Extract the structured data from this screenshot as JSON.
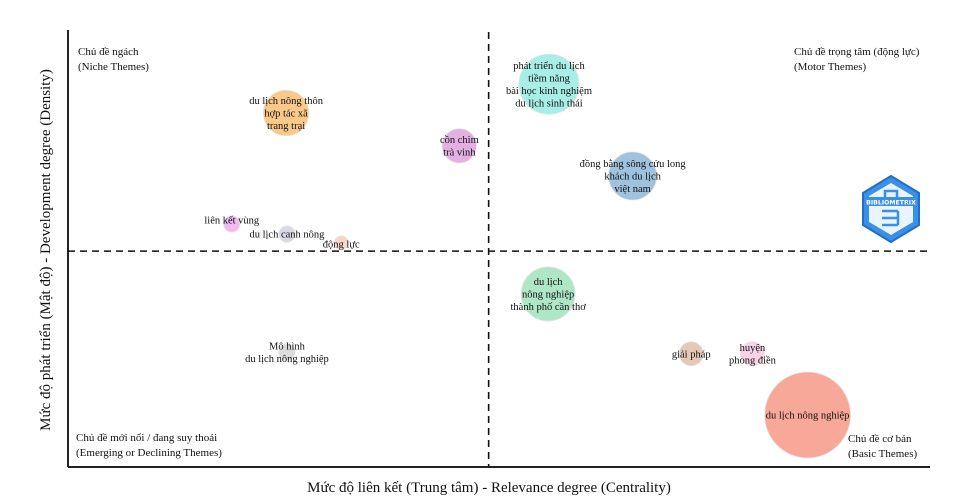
{
  "chart_data": {
    "type": "scatter",
    "subtype": "bubble-thematic-map",
    "xlabel": "Mức độ liên kết (Trung tâm) - Relevance degree (Centrality)",
    "ylabel": "Mức độ phát triển (Mật độ) - Development degree (Density)",
    "xlim": [
      0,
      100
    ],
    "ylim": [
      0,
      100
    ],
    "x_divider": 48.8,
    "y_divider": 49.4,
    "grid": false,
    "quadrants": {
      "top_left": [
        "Chủ đề ngách",
        "(Niche Themes)"
      ],
      "top_right": [
        "Chủ đề trọng tâm (động lực)",
        "(Motor Themes)"
      ],
      "bottom_left": [
        "Chủ đề mới nổi / đang suy thoái",
        "(Emerging or Declining Themes)"
      ],
      "bottom_right": [
        "Chủ đề cơ bản",
        "(Basic Themes)"
      ]
    },
    "points": [
      {
        "label": [
          "du lịch nông thôn",
          "hợp tác xã",
          "trang trại"
        ],
        "x": 25.3,
        "y": 81.0,
        "size": 53,
        "color": "#f9c98a"
      },
      {
        "label": [
          "cồn chim",
          "trà vinh"
        ],
        "x": 45.4,
        "y": 73.5,
        "size": 40,
        "color": "#e4b0e4"
      },
      {
        "label": [
          "liên kết vùng"
        ],
        "x": 19.0,
        "y": 55.6,
        "size": 19,
        "color": "#f3b8f0"
      },
      {
        "label": [
          "du lịch canh nông"
        ],
        "x": 25.4,
        "y": 53.3,
        "size": 19,
        "color": "#d8d8e6"
      },
      {
        "label": [
          "động lực"
        ],
        "x": 31.7,
        "y": 51.3,
        "size": 16,
        "color": "#f8d6c8"
      },
      {
        "label": [
          "phát triển du lịch",
          "tiềm năng",
          "bài học kinh nghiệm",
          "du lịch sinh thái"
        ],
        "x": 55.8,
        "y": 87.6,
        "size": 70,
        "color": "#a8eee6"
      },
      {
        "label": [
          "đồng bằng sông cửu long",
          "khách du lịch",
          "việt nam"
        ],
        "x": 65.5,
        "y": 66.6,
        "size": 56,
        "color": "#9fc2de"
      },
      {
        "label": [
          "du lịch",
          "nông nghiệp",
          "thành phố cần thơ"
        ],
        "x": 55.7,
        "y": 39.6,
        "size": 63,
        "color": "#afe7c6"
      },
      {
        "label": [
          "Mô hình",
          "du lịch nông nghiệp"
        ],
        "x": 25.4,
        "y": 26.3,
        "size": 19,
        "color": "#dcdcdc"
      },
      {
        "label": [
          "giải pháp"
        ],
        "x": 72.3,
        "y": 25.9,
        "size": 28,
        "color": "#e4cab6"
      },
      {
        "label": [
          "huyện",
          "phong điền"
        ],
        "x": 79.4,
        "y": 25.9,
        "size": 28,
        "color": "#f9d2e8"
      },
      {
        "label": [
          "du lịch nông nghiệp"
        ],
        "x": 85.8,
        "y": 11.9,
        "size": 100,
        "color": "#f7a898"
      }
    ]
  },
  "logo": {
    "text": "BIBLIOMETRIX",
    "color": "#2f8de4"
  }
}
